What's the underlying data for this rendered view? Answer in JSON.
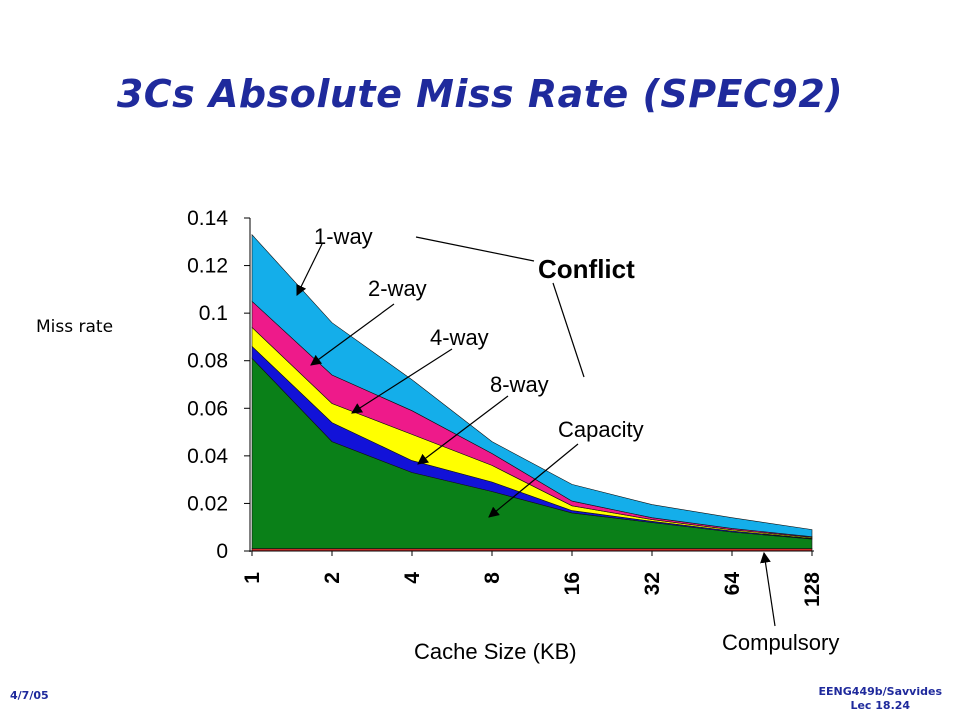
{
  "slide": {
    "title": "3Cs Absolute Miss Rate (SPEC92)",
    "footer_date": "4/7/05",
    "footer_course_line1": "EENG449b/Savvides",
    "footer_course_line2": "Lec 18.24"
  },
  "chart_data": {
    "type": "area",
    "stacked": true,
    "title": "",
    "xlabel": "Cache Size (KB)",
    "ylabel": "Miss rate",
    "ylim": [
      0,
      0.14
    ],
    "yticks": [
      0,
      0.02,
      0.04,
      0.06,
      0.08,
      0.1,
      0.12,
      0.14
    ],
    "ytick_labels": [
      "0",
      "0.02",
      "0.04",
      "0.06",
      "0.08",
      "0.1",
      "0.12",
      "0.14"
    ],
    "categories": [
      "1",
      "2",
      "4",
      "8",
      "16",
      "32",
      "64",
      "128"
    ],
    "grid": false,
    "series": [
      {
        "name": "Compulsory",
        "color": "#cc2a2a",
        "values": [
          0.001,
          0.001,
          0.001,
          0.001,
          0.001,
          0.001,
          0.001,
          0.001
        ]
      },
      {
        "name": "Capacity",
        "color": "#0a8018",
        "values": [
          0.08,
          0.045,
          0.032,
          0.024,
          0.015,
          0.011,
          0.007,
          0.004
        ]
      },
      {
        "name": "8-way",
        "color": "#1212d8",
        "values": [
          0.005,
          0.008,
          0.005,
          0.004,
          0.001,
          0.0005,
          0.0004,
          0.0003
        ]
      },
      {
        "name": "4-way",
        "color": "#ffff00",
        "values": [
          0.008,
          0.008,
          0.011,
          0.007,
          0.002,
          0.0007,
          0.0005,
          0.0004
        ]
      },
      {
        "name": "2-way",
        "color": "#ee1a8a",
        "values": [
          0.011,
          0.012,
          0.01,
          0.005,
          0.002,
          0.0008,
          0.0006,
          0.0003
        ]
      },
      {
        "name": "1-way",
        "color": "#14aeea",
        "values": [
          0.028,
          0.022,
          0.013,
          0.005,
          0.007,
          0.0055,
          0.0045,
          0.003
        ]
      }
    ],
    "annotations": [
      {
        "text": "1-way",
        "series": "1-way"
      },
      {
        "text": "2-way",
        "series": "2-way"
      },
      {
        "text": "4-way",
        "series": "4-way"
      },
      {
        "text": "8-way",
        "series": "8-way"
      },
      {
        "text": "Capacity",
        "series": "Capacity"
      },
      {
        "text": "Compulsory",
        "series": "Compulsory"
      },
      {
        "text": "Conflict",
        "series": ""
      }
    ]
  }
}
